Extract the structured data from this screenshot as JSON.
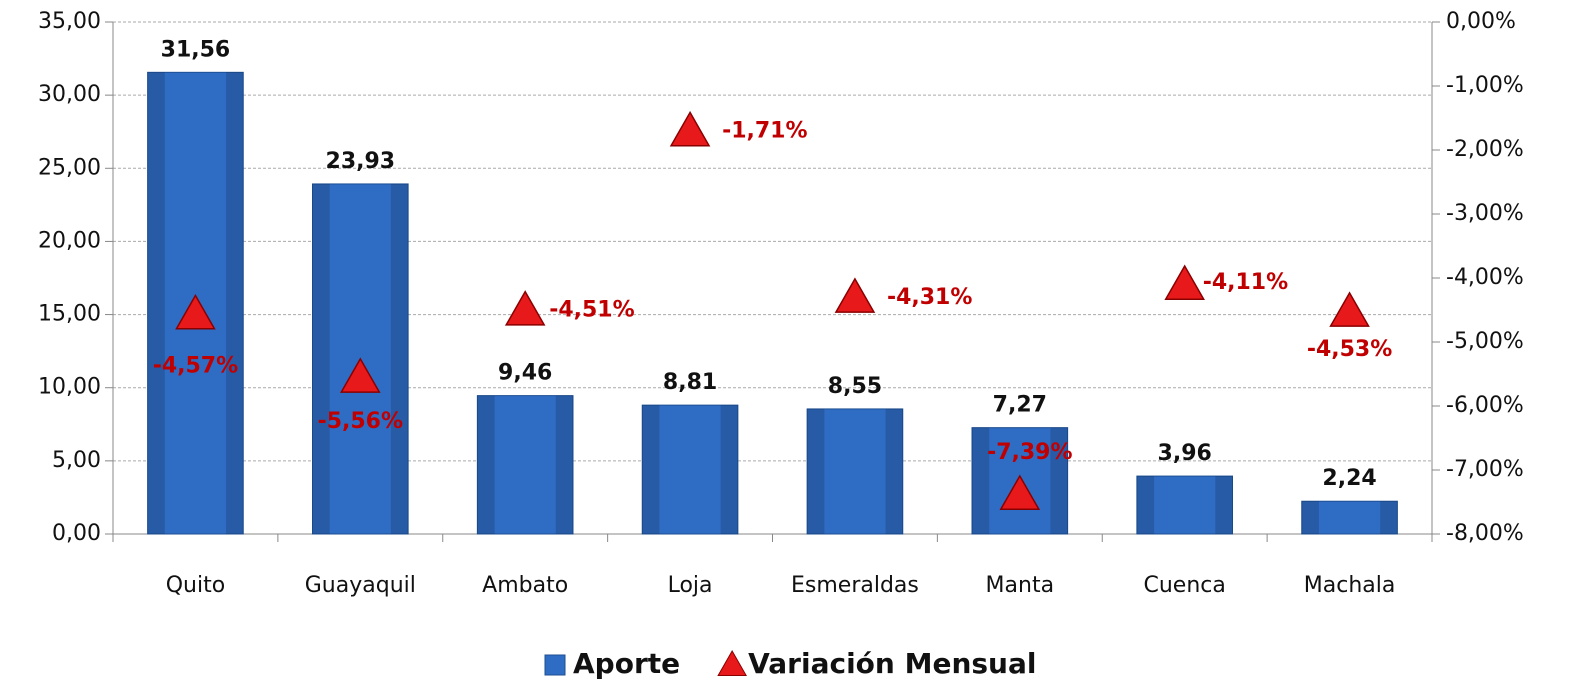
{
  "chart_data": {
    "type": "bar",
    "categories": [
      "Quito",
      "Guayaquil",
      "Ambato",
      "Loja",
      "Esmeraldas",
      "Manta",
      "Cuenca",
      "Machala"
    ],
    "series": [
      {
        "name": "Aporte",
        "type": "bar",
        "color": "#2f6cc4",
        "values": [
          31.56,
          23.93,
          9.46,
          8.81,
          8.55,
          7.27,
          3.96,
          2.24
        ],
        "value_labels": [
          "31,56",
          "23,93",
          "9,46",
          "8,81",
          "8,55",
          "7,27",
          "3,96",
          "2,24"
        ]
      },
      {
        "name": "Variación Mensual",
        "type": "scatter",
        "axis": "y2",
        "color": "#e8191a",
        "values": [
          -4.57,
          -5.56,
          -4.51,
          -1.71,
          -4.31,
          -7.39,
          -4.11,
          -4.53
        ],
        "value_labels": [
          "-4,57%",
          "-5,56%",
          "-4,51%",
          "-1,71%",
          "-4,31%",
          "-7,39%",
          "-4,11%",
          "-4,53%"
        ]
      }
    ],
    "ylim": [
      0,
      35
    ],
    "yticks": [
      {
        "value": 0,
        "label": "0,00"
      },
      {
        "value": 5,
        "label": "5,00"
      },
      {
        "value": 10,
        "label": "10,00"
      },
      {
        "value": 15,
        "label": "15,00"
      },
      {
        "value": 20,
        "label": "20,00"
      },
      {
        "value": 25,
        "label": "25,00"
      },
      {
        "value": 30,
        "label": "30,00"
      },
      {
        "value": 35,
        "label": "35,00"
      }
    ],
    "y2lim": [
      -8,
      0
    ],
    "y2ticks": [
      {
        "value": -8,
        "label": "-8,00%"
      },
      {
        "value": -7,
        "label": "-7,00%"
      },
      {
        "value": -6,
        "label": "-6,00%"
      },
      {
        "value": -5,
        "label": "-5,00%"
      },
      {
        "value": -4,
        "label": "-4,00%"
      },
      {
        "value": -3,
        "label": "-3,00%"
      },
      {
        "value": -2,
        "label": "-2,00%"
      },
      {
        "value": -1,
        "label": "-1,00%"
      },
      {
        "value": 0,
        "label": "0,00%"
      }
    ],
    "grid": true,
    "legend": "bottom"
  }
}
